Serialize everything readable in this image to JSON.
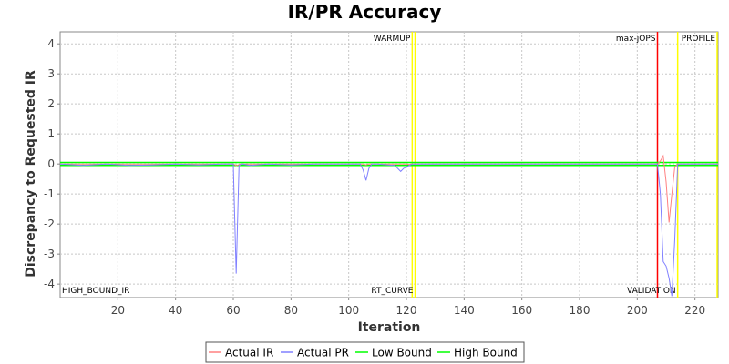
{
  "chart_data": {
    "type": "line",
    "title": "IR/PR Accuracy",
    "xlabel": "Iteration",
    "ylabel": "Discrepancy to Requested IR",
    "xlim": [
      0,
      228
    ],
    "ylim": [
      -4.45,
      4.4
    ],
    "x_ticks": [
      20,
      40,
      60,
      80,
      100,
      120,
      140,
      160,
      180,
      200,
      220
    ],
    "y_ticks": [
      -4,
      -3,
      -2,
      -1,
      0,
      1,
      2,
      3,
      4
    ],
    "grid": true,
    "legend_position": "bottom",
    "series": [
      {
        "name": "Actual IR",
        "color": "#ff8080",
        "x": [
          0,
          60,
          61,
          62,
          63,
          100,
          105,
          106,
          107,
          108,
          120,
          121,
          122,
          207,
          208,
          209,
          210,
          211,
          212,
          213,
          214,
          228
        ],
        "y": [
          0,
          0,
          -0.05,
          -0.02,
          0,
          0,
          0,
          -0.03,
          0,
          0,
          0,
          -0.02,
          0,
          0,
          0.1,
          0.27,
          -0.6,
          -1.95,
          -1.0,
          -0.1,
          0,
          0
        ]
      },
      {
        "name": "Actual PR",
        "color": "#8080ff",
        "x": [
          0,
          8,
          16,
          24,
          32,
          40,
          48,
          56,
          60,
          61,
          62,
          63,
          66,
          72,
          80,
          88,
          96,
          104,
          105,
          106,
          107,
          108,
          110,
          116,
          118,
          119,
          120,
          121,
          122,
          130,
          140,
          150,
          160,
          170,
          180,
          190,
          200,
          207,
          208,
          209,
          210,
          211,
          212,
          213,
          214,
          228
        ],
        "y": [
          0,
          -0.05,
          0,
          -0.05,
          -0.03,
          0,
          -0.03,
          0,
          0,
          -3.65,
          -0.05,
          0,
          -0.05,
          0,
          -0.03,
          0,
          0,
          0,
          -0.2,
          -0.55,
          -0.15,
          0,
          0,
          -0.05,
          -0.25,
          -0.15,
          -0.1,
          -0.05,
          0,
          0,
          0,
          0,
          0,
          0,
          0,
          0,
          0,
          0,
          -1.0,
          -3.25,
          -3.4,
          -3.8,
          -4.4,
          -2.5,
          0,
          0
        ]
      },
      {
        "name": "Low Bound",
        "color": "#00ff00",
        "x": [
          0,
          228
        ],
        "y": [
          -0.05,
          -0.05
        ]
      },
      {
        "name": "High Bound",
        "color": "#00ff00",
        "x": [
          0,
          228
        ],
        "y": [
          0.05,
          0.05
        ]
      }
    ],
    "markers": [
      {
        "label": "WARMUP",
        "x": 122,
        "color": "#ffff00",
        "position": "top"
      },
      {
        "label": "RT_CURVE",
        "x": 123,
        "color": "#ffff00",
        "position": "bottom"
      },
      {
        "label": "max-jOPS",
        "x": 207,
        "color": "#ff0000",
        "position": "top"
      },
      {
        "label": "VALIDATION",
        "x": 214,
        "color": "#ffff00",
        "position": "bottom"
      },
      {
        "label": "PROFILE",
        "x": 228,
        "color": "#ffff00",
        "position": "top"
      }
    ],
    "annotations": [
      {
        "label": "HIGH_BOUND_IR",
        "position": "bottom-left"
      }
    ]
  }
}
